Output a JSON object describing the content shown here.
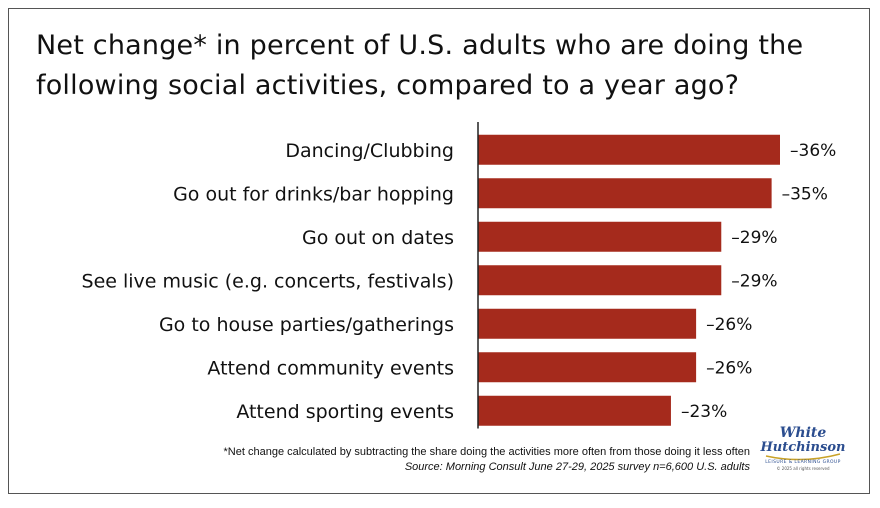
{
  "title": "Net change* in percent of U.S. adults who are doing the following social activities, compared to a year ago?",
  "footnote": "*Net change calculated by subtracting the share doing the activities more often from those doing it less often",
  "source": "Source: Morning Consult June 27-29, 2025 survey n=6,600 U.S. adults",
  "logo": {
    "line1": "White",
    "line2": "Hutchinson",
    "tagline": "LEISURE & LEARNING GROUP",
    "copyright": "© 2025 all rights reserved"
  },
  "colors": {
    "bar": "#a52a1c",
    "axis": "#222222",
    "logo_blue": "#2b4d8f"
  },
  "chart_data": {
    "type": "bar",
    "orientation": "horizontal",
    "categories": [
      "Dancing/Clubbing",
      "Go out for drinks/bar hopping",
      "Go out on dates",
      "See live music (e.g. concerts, festivals)",
      "Go to house parties/gatherings",
      "Attend community events",
      "Attend sporting events"
    ],
    "values": [
      -36,
      -35,
      -29,
      -29,
      -26,
      -26,
      -23
    ],
    "value_labels": [
      "–36%",
      "–35%",
      "–29%",
      "–29%",
      "–26%",
      "–26%",
      "–23%"
    ],
    "unit": "%",
    "grid": false,
    "legend": "none"
  }
}
